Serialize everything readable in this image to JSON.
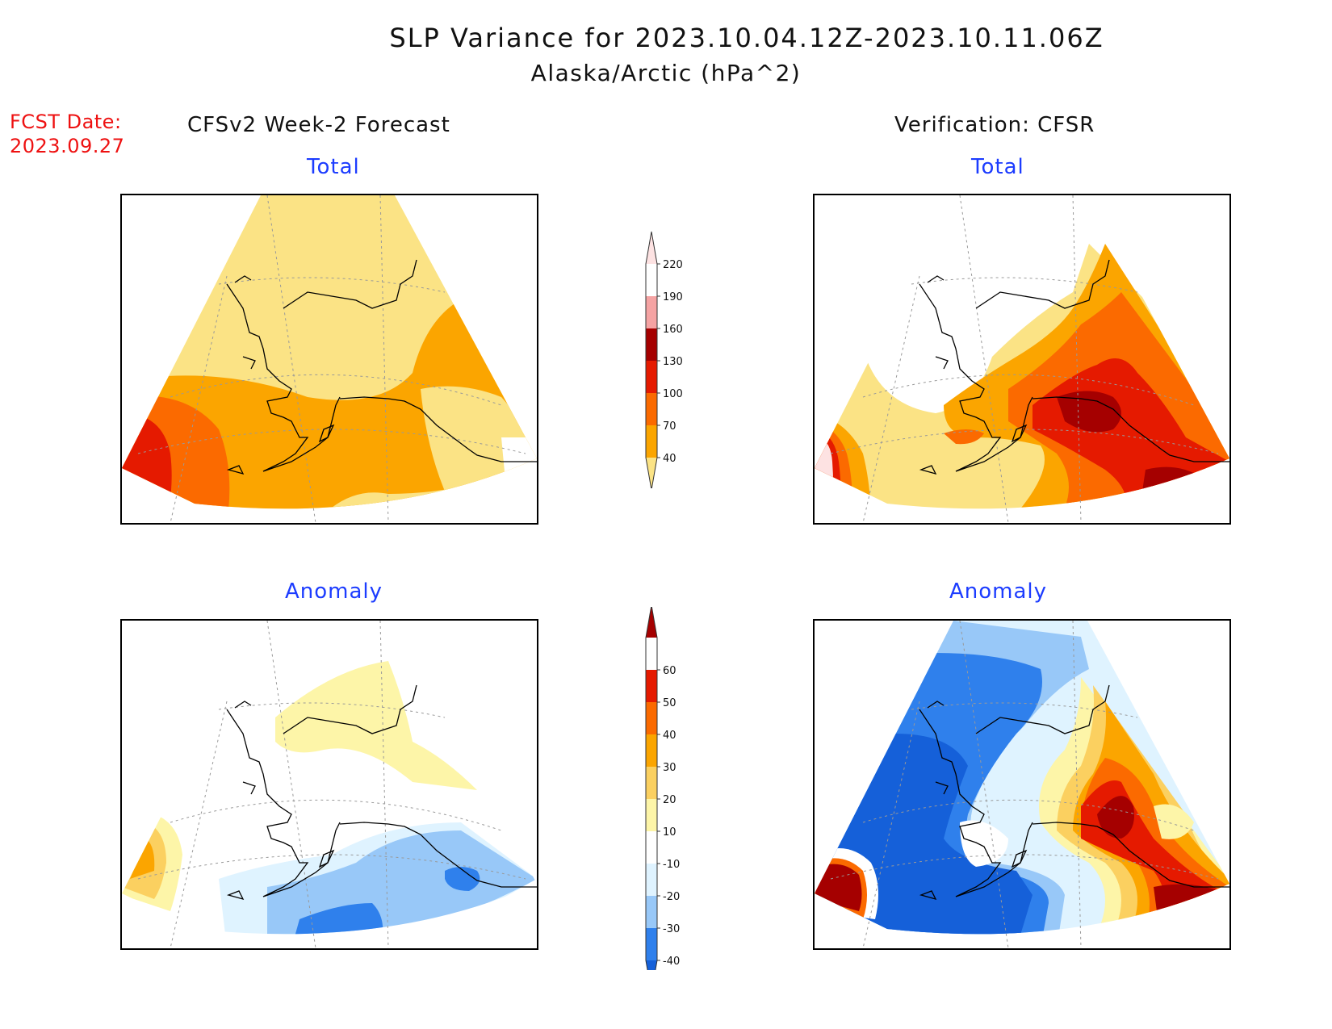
{
  "header": {
    "title": "SLP Variance for 2023.10.04.12Z-2023.10.11.06Z",
    "subtitle": "Alaska/Arctic (hPa^2)",
    "fcst_line1": "FCST Date:",
    "fcst_line2": "2023.09.27",
    "left_column": "CFSv2 Week-2 Forecast",
    "right_column": "Verification: CFSR"
  },
  "panels": {
    "fc_total_label": "Total",
    "vf_total_label": "Total",
    "fc_anom_label": "Anomaly",
    "vf_anom_label": "Anomaly"
  },
  "colorbars": {
    "total": {
      "labels": [
        "40",
        "70",
        "100",
        "130",
        "160",
        "190",
        "220"
      ],
      "colors": [
        "#fbe385",
        "#fba500",
        "#fb6a00",
        "#e51a00",
        "#a50000",
        "#f5a3a3",
        "#fde2e2"
      ]
    },
    "anomaly": {
      "labels": [
        "-40",
        "-30",
        "-20",
        "-10",
        "10",
        "20",
        "30",
        "40",
        "50",
        "60"
      ],
      "colors": [
        "#1560d9",
        "#2f80ec",
        "#98c8f8",
        "#dff3ff",
        "#ffffff",
        "#fdf5a8",
        "#fbd060",
        "#fba500",
        "#fb6a00",
        "#e51a00",
        "#a50000"
      ]
    }
  },
  "colors": {
    "title": "#111111",
    "fcst_date": "#ee1111",
    "subtitle_blue": "#1c3cff"
  }
}
